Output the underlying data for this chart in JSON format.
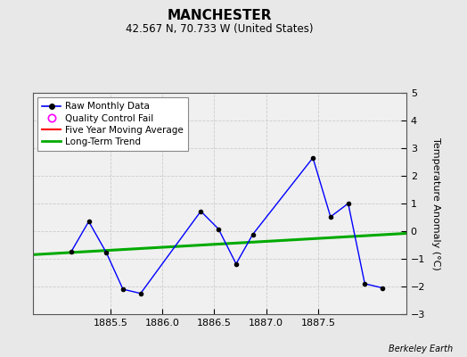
{
  "title": "MANCHESTER",
  "subtitle": "42.567 N, 70.733 W (United States)",
  "credit": "Berkeley Earth",
  "ylabel": "Temperature Anomaly (°C)",
  "xlim": [
    1884.75,
    1888.35
  ],
  "ylim": [
    -3,
    5
  ],
  "yticks": [
    -3,
    -2,
    -1,
    0,
    1,
    2,
    3,
    4,
    5
  ],
  "xticks": [
    1885.5,
    1886,
    1886.5,
    1887,
    1887.5
  ],
  "bg_color": "#e8e8e8",
  "plot_bg": "#f0f0f0",
  "raw_x": [
    1885.12,
    1885.29,
    1885.46,
    1885.62,
    1885.79,
    1886.37,
    1886.54,
    1886.71,
    1886.87,
    1887.45,
    1887.62,
    1887.79,
    1887.95,
    1888.12
  ],
  "raw_y": [
    -0.75,
    0.35,
    -0.78,
    -2.1,
    -2.25,
    0.72,
    0.08,
    -1.18,
    -0.12,
    2.65,
    0.52,
    1.0,
    -1.9,
    -2.05
  ],
  "trend_x": [
    1884.75,
    1888.35
  ],
  "trend_y": [
    -0.85,
    -0.08
  ],
  "raw_color": "#0000ff",
  "raw_marker_color": "#000000",
  "trend_color": "#00aa00",
  "moving_avg_color": "#ff0000",
  "qc_color": "#ff00ff",
  "title_fontsize": 11,
  "subtitle_fontsize": 8.5,
  "legend_fontsize": 7.5,
  "tick_fontsize": 8,
  "ylabel_fontsize": 8,
  "credit_fontsize": 7
}
